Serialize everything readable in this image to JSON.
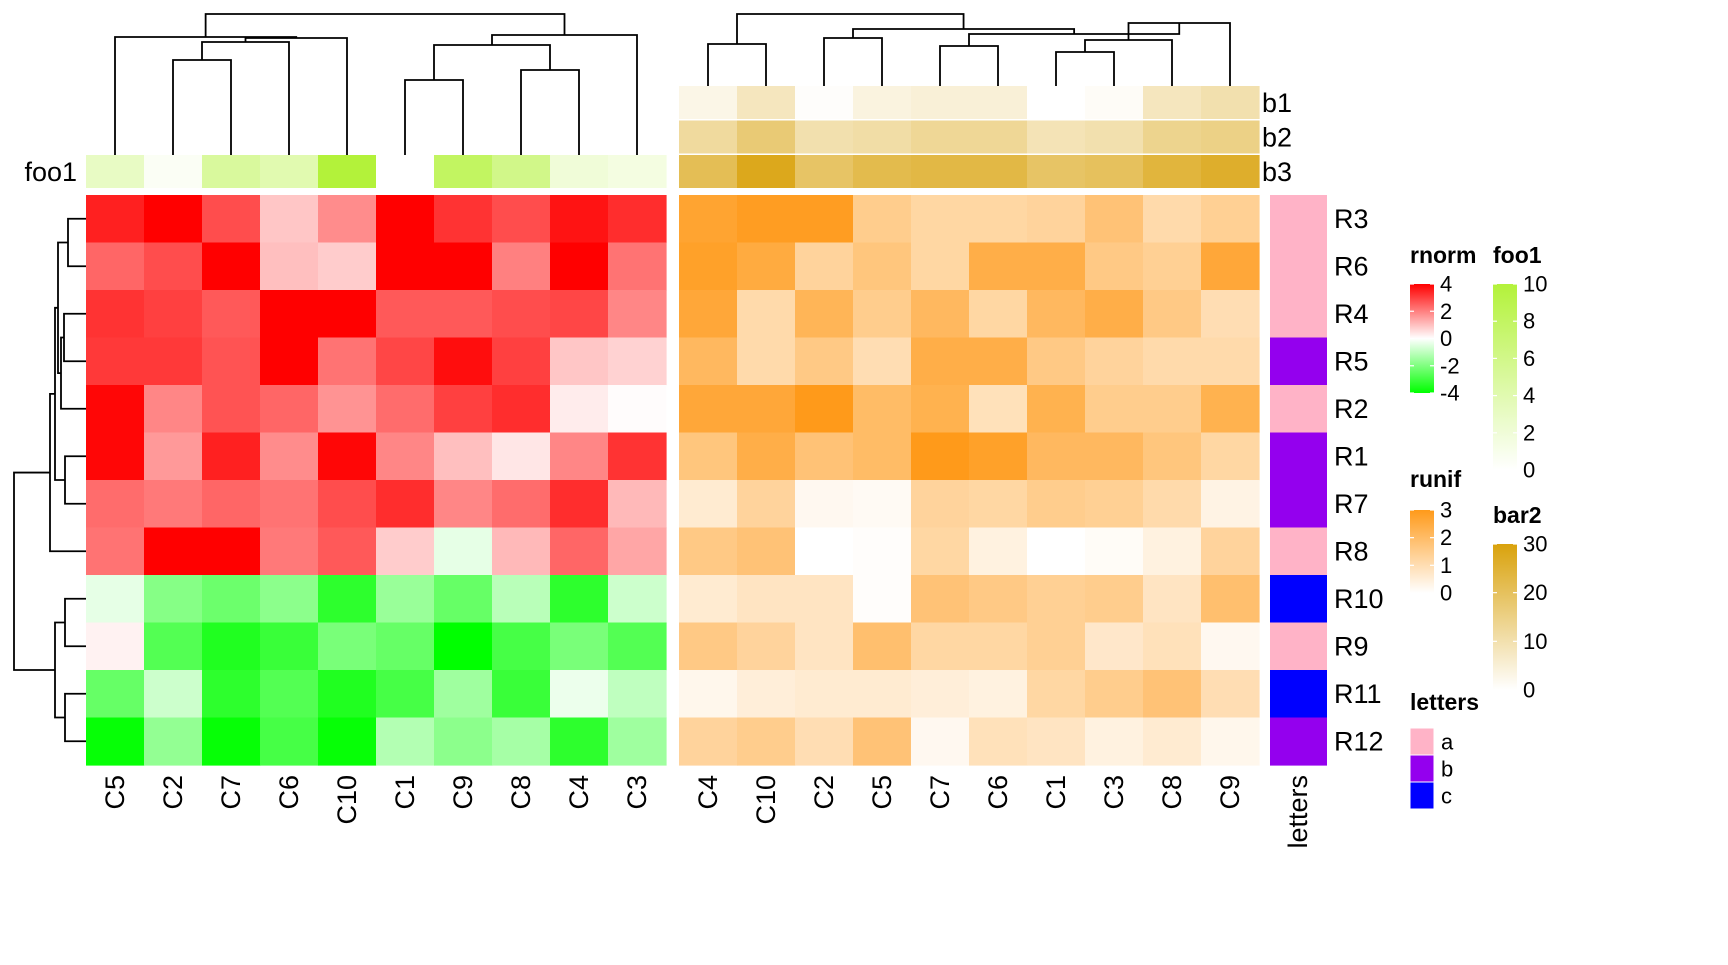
{
  "chart_data": {
    "type": "heatmap",
    "rows": [
      "R3",
      "R6",
      "R4",
      "R5",
      "R2",
      "R1",
      "R7",
      "R8",
      "R10",
      "R9",
      "R11",
      "R12"
    ],
    "rnorm": {
      "columns": [
        "C5",
        "C2",
        "C7",
        "C6",
        "C10",
        "C1",
        "C9",
        "C8",
        "C4",
        "C3"
      ],
      "values": [
        [
          3.5,
          4.0,
          2.8,
          0.9,
          1.8,
          4.0,
          3.2,
          2.8,
          3.7,
          3.3
        ],
        [
          2.4,
          2.8,
          4.0,
          1.0,
          0.8,
          4.0,
          4.0,
          2.0,
          4.0,
          2.2
        ],
        [
          3.2,
          3.0,
          2.6,
          4.0,
          4.0,
          2.6,
          2.6,
          2.8,
          2.9,
          1.9
        ],
        [
          3.1,
          3.1,
          2.7,
          4.0,
          2.2,
          2.9,
          3.8,
          3.0,
          0.9,
          0.7
        ],
        [
          3.9,
          1.9,
          2.7,
          2.4,
          1.7,
          2.3,
          3.0,
          3.3,
          0.3,
          0.05
        ],
        [
          3.9,
          1.6,
          3.5,
          1.8,
          3.9,
          1.9,
          1.0,
          0.4,
          1.9,
          3.2
        ],
        [
          2.3,
          2.1,
          2.4,
          2.2,
          2.8,
          3.3,
          1.9,
          2.3,
          3.3,
          1.1
        ],
        [
          2.2,
          4.0,
          4.0,
          2.1,
          2.6,
          0.8,
          -0.4,
          1.1,
          2.4,
          1.4
        ],
        [
          -0.4,
          -1.9,
          -2.3,
          -1.8,
          -3.3,
          -1.6,
          -2.4,
          -1.1,
          -3.3,
          -0.8
        ],
        [
          0.2,
          -2.7,
          -3.5,
          -3.1,
          -2.1,
          -2.4,
          -4.0,
          -2.9,
          -2.1,
          -2.7
        ],
        [
          -2.4,
          -0.8,
          -3.3,
          -2.7,
          -3.5,
          -2.9,
          -1.5,
          -3.1,
          -0.3,
          -1.0
        ],
        [
          -3.9,
          -1.7,
          -3.9,
          -2.9,
          -3.9,
          -1.2,
          -1.8,
          -1.4,
          -3.3,
          -1.5
        ]
      ]
    },
    "runif": {
      "columns": [
        "C4",
        "C10",
        "C2",
        "C5",
        "C7",
        "C6",
        "C1",
        "C3",
        "C8",
        "C9"
      ],
      "values": [
        [
          2.7,
          2.9,
          2.9,
          1.5,
          1.2,
          1.2,
          1.3,
          1.8,
          1.1,
          1.4
        ],
        [
          2.8,
          2.5,
          1.3,
          1.7,
          1.2,
          2.4,
          2.4,
          1.6,
          1.4,
          2.6
        ],
        [
          2.6,
          1.1,
          2.2,
          1.5,
          2.1,
          1.2,
          2.1,
          2.4,
          1.6,
          1.0
        ],
        [
          2.1,
          1.1,
          1.6,
          1.0,
          2.4,
          2.4,
          1.6,
          1.3,
          1.1,
          1.1
        ],
        [
          2.6,
          2.6,
          3.0,
          2.0,
          2.3,
          0.9,
          2.3,
          1.5,
          1.5,
          2.3
        ],
        [
          1.7,
          2.4,
          1.8,
          2.0,
          3.0,
          2.8,
          2.1,
          2.1,
          1.7,
          1.2
        ],
        [
          0.6,
          1.3,
          0.2,
          0.15,
          1.3,
          1.2,
          1.5,
          1.4,
          1.1,
          0.35
        ],
        [
          1.6,
          1.8,
          0.0,
          0.05,
          1.2,
          0.4,
          0.0,
          0.1,
          0.4,
          1.3
        ],
        [
          0.6,
          0.8,
          0.8,
          0.05,
          1.8,
          1.6,
          1.4,
          1.5,
          0.8,
          1.9
        ],
        [
          1.6,
          1.3,
          0.8,
          1.9,
          1.2,
          1.2,
          1.4,
          0.7,
          0.9,
          0.2
        ],
        [
          0.25,
          0.5,
          0.6,
          0.6,
          0.5,
          0.4,
          1.2,
          1.5,
          1.8,
          1.0
        ],
        [
          1.3,
          1.5,
          1.0,
          1.8,
          0.2,
          0.9,
          0.8,
          0.4,
          0.6,
          0.25
        ]
      ]
    },
    "top_annotations": {
      "foo1": [
        3,
        0.5,
        5,
        4,
        10,
        0,
        8,
        6,
        2,
        1.5
      ],
      "b1": [
        3,
        8,
        0.5,
        4,
        5,
        5,
        0,
        1,
        8,
        10
      ],
      "b2": [
        12,
        17,
        10,
        11,
        13,
        13,
        9,
        10,
        14,
        15
      ],
      "b3": [
        21,
        28,
        19,
        22,
        23,
        23,
        19,
        20,
        24,
        26
      ]
    },
    "row_annotation": {
      "name": "letters",
      "values": [
        "a",
        "a",
        "a",
        "b",
        "a",
        "b",
        "b",
        "a",
        "c",
        "a",
        "c",
        "b"
      ]
    },
    "legends": {
      "rnorm": {
        "title": "rnorm",
        "ticks": [
          "4",
          "2",
          "0",
          "-2",
          "-4"
        ]
      },
      "runif": {
        "title": "runif",
        "ticks": [
          "3",
          "2",
          "1",
          "0"
        ]
      },
      "letters": {
        "title": "letters",
        "levels": [
          "a",
          "b",
          "c"
        ]
      },
      "foo1": {
        "title": "foo1",
        "ticks": [
          "10",
          "8",
          "6",
          "4",
          "2",
          "0"
        ]
      },
      "bar2": {
        "title": "bar2",
        "ticks": [
          "30",
          "20",
          "10",
          "0"
        ]
      }
    },
    "annotation_labels": {
      "foo1": "foo1",
      "b1": "b1",
      "b2": "b2",
      "b3": "b3"
    },
    "colors": {
      "rnorm_high": "#ff0000",
      "rnorm_mid": "#ffffff",
      "rnorm_low": "#00ff00",
      "runif_high": "#ff9a1a",
      "runif_low": "#ffffff",
      "foo1_high": "#b3f23a",
      "foo1_low": "#ffffff",
      "bar2_high": "#d9a20c",
      "bar2_low": "#ffffff",
      "letter_a": "#ffb3c7",
      "letter_b": "#9400ee",
      "letter_c": "#0000ff"
    }
  }
}
